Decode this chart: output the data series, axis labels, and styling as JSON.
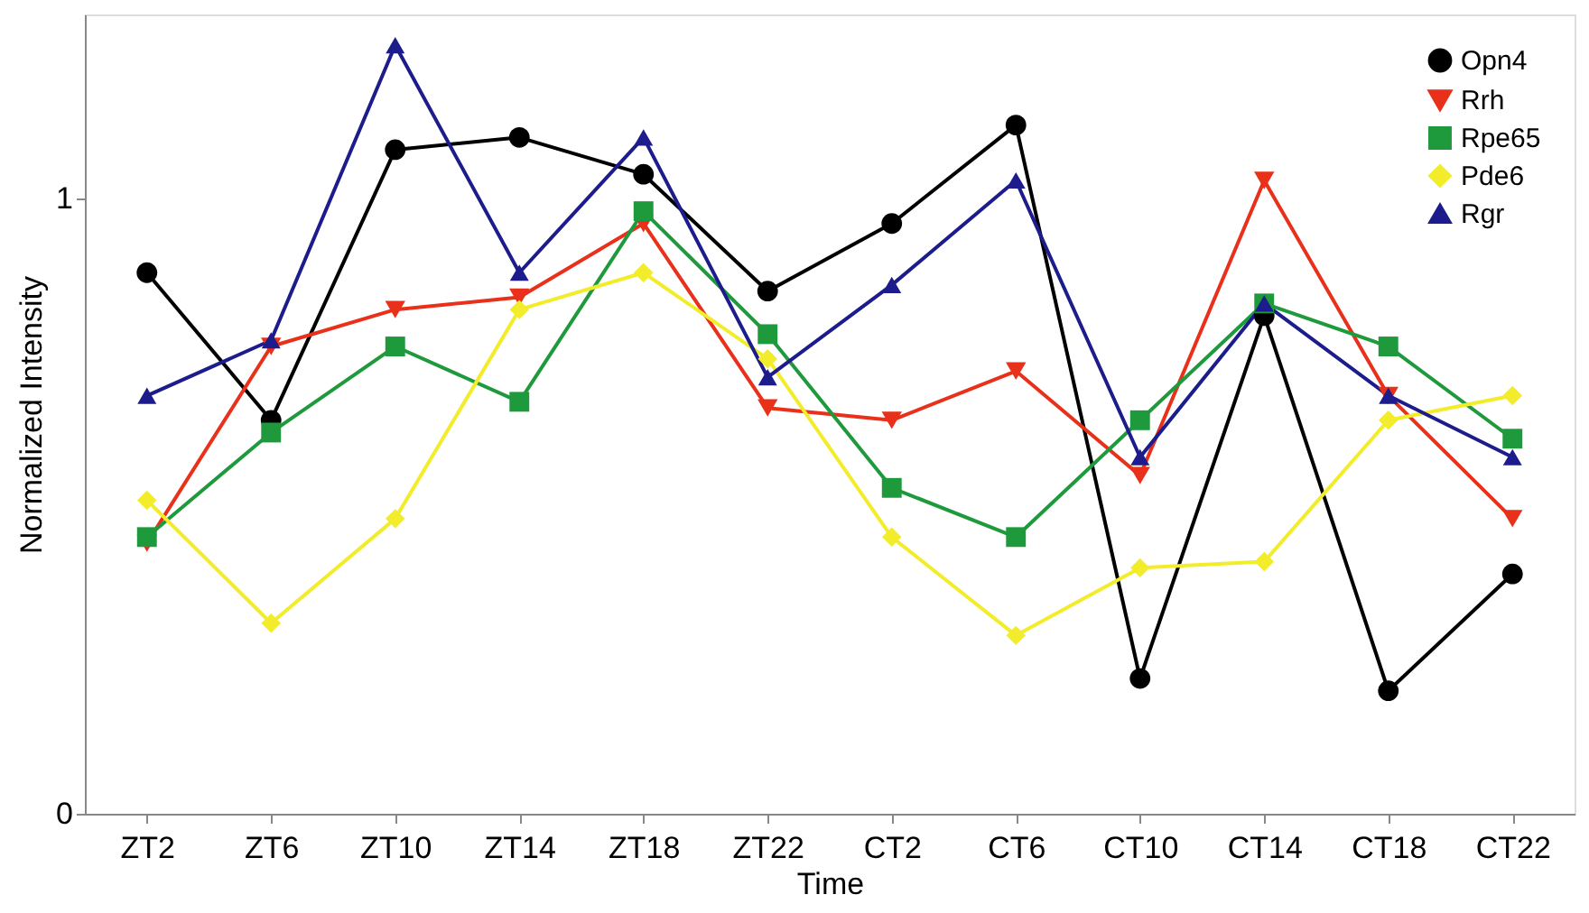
{
  "chart_data": {
    "type": "line",
    "xlabel": "Time",
    "ylabel": "Normalized Intensity",
    "categories": [
      "ZT2",
      "ZT6",
      "ZT10",
      "ZT14",
      "ZT18",
      "ZT22",
      "CT2",
      "CT6",
      "CT10",
      "CT14",
      "CT18",
      "CT22"
    ],
    "series": [
      {
        "name": "Opn4",
        "color": "#000000",
        "marker": "circle",
        "values": [
          0.88,
          0.64,
          1.08,
          1.1,
          1.04,
          0.85,
          0.96,
          1.12,
          0.22,
          0.81,
          0.2,
          0.39
        ]
      },
      {
        "name": "Rrh",
        "color": "#e8301a",
        "marker": "triangle-down",
        "values": [
          0.44,
          0.76,
          0.82,
          0.84,
          0.96,
          0.66,
          0.64,
          0.72,
          0.55,
          1.03,
          0.68,
          0.48
        ]
      },
      {
        "name": "Rpe65",
        "color": "#1e9a3c",
        "marker": "square",
        "values": [
          0.45,
          0.62,
          0.76,
          0.67,
          0.98,
          0.78,
          0.53,
          0.45,
          0.64,
          0.83,
          0.76,
          0.61
        ]
      },
      {
        "name": "Pde6",
        "color": "#f2ec2a",
        "marker": "diamond",
        "values": [
          0.51,
          0.31,
          0.48,
          0.82,
          0.88,
          0.74,
          0.45,
          0.29,
          0.4,
          0.41,
          0.64,
          0.68
        ]
      },
      {
        "name": "Rgr",
        "color": "#1c1c8c",
        "marker": "triangle",
        "values": [
          0.68,
          0.77,
          1.25,
          0.88,
          1.1,
          0.71,
          0.86,
          1.03,
          0.58,
          0.83,
          0.68,
          0.58
        ]
      }
    ],
    "ylim": [
      0,
      1.3
    ],
    "yticks": [
      0,
      1
    ],
    "grid": false,
    "legend": "top right",
    "line_style": "solid"
  }
}
